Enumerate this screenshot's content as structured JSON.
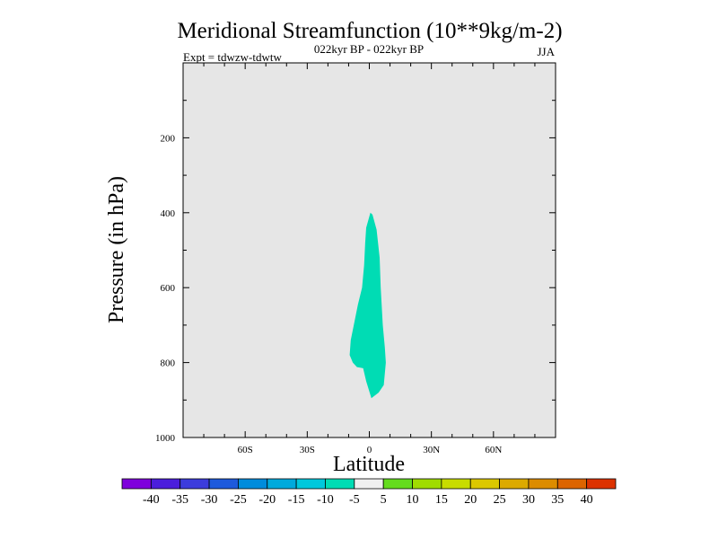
{
  "chart_data": {
    "type": "heatmap",
    "title": "Meridional Streamfunction (10**9kg/m-2)",
    "subtitle_center": "022kyr BP - 022kyr BP",
    "subtitle_left": "Expt = tdwzw-tdwtw",
    "subtitle_right": "JJA",
    "xlabel": "Latitude",
    "ylabel": "Pressure (in hPa)",
    "xlim": [
      -90,
      90
    ],
    "ylim": [
      0,
      1000
    ],
    "y_reversed": true,
    "x_ticks": [
      {
        "value": -60,
        "label": "60S"
      },
      {
        "value": -30,
        "label": "30S"
      },
      {
        "value": 0,
        "label": "0"
      },
      {
        "value": 30,
        "label": "30N"
      },
      {
        "value": 60,
        "label": "60N"
      }
    ],
    "y_ticks": [
      {
        "value": 200,
        "label": "200"
      },
      {
        "value": 400,
        "label": "400"
      },
      {
        "value": 600,
        "label": "600"
      },
      {
        "value": 800,
        "label": "800"
      },
      {
        "value": 1000,
        "label": "1000"
      }
    ],
    "background_color": "#e6e6e6",
    "filled_regions": [
      {
        "level_range": [
          -10,
          -5
        ],
        "color": "#00dcb4",
        "outline": [
          [
            0.5,
            400
          ],
          [
            1.5,
            405
          ],
          [
            3.5,
            445
          ],
          [
            5.0,
            520
          ],
          [
            5.5,
            600
          ],
          [
            6.5,
            700
          ],
          [
            7.5,
            760
          ],
          [
            8.0,
            800
          ],
          [
            7.0,
            860
          ],
          [
            4.5,
            880
          ],
          [
            1.0,
            895
          ],
          [
            -1.5,
            850
          ],
          [
            -3.0,
            815
          ],
          [
            -6.0,
            812
          ],
          [
            -8.0,
            800
          ],
          [
            -9.5,
            780
          ],
          [
            -9.0,
            740
          ],
          [
            -7.5,
            700
          ],
          [
            -5.5,
            645
          ],
          [
            -3.5,
            600
          ],
          [
            -2.5,
            540
          ],
          [
            -2.0,
            480
          ],
          [
            -1.5,
            440
          ]
        ]
      }
    ],
    "colorbar": {
      "labels": [
        "-40",
        "-35",
        "-30",
        "-25",
        "-20",
        "-15",
        "-10",
        "-5",
        "5",
        "10",
        "15",
        "20",
        "25",
        "30",
        "35",
        "40"
      ],
      "colors": [
        "#7f00dc",
        "#4b1edc",
        "#3c3cdc",
        "#1e5adc",
        "#008cdc",
        "#00aadc",
        "#00c8dc",
        "#00dcb4",
        "#f0f0f0",
        "#64dc1e",
        "#a0dc00",
        "#c8dc00",
        "#dcc800",
        "#dcaa00",
        "#dc8c00",
        "#dc6400",
        "#dc3200"
      ]
    }
  }
}
